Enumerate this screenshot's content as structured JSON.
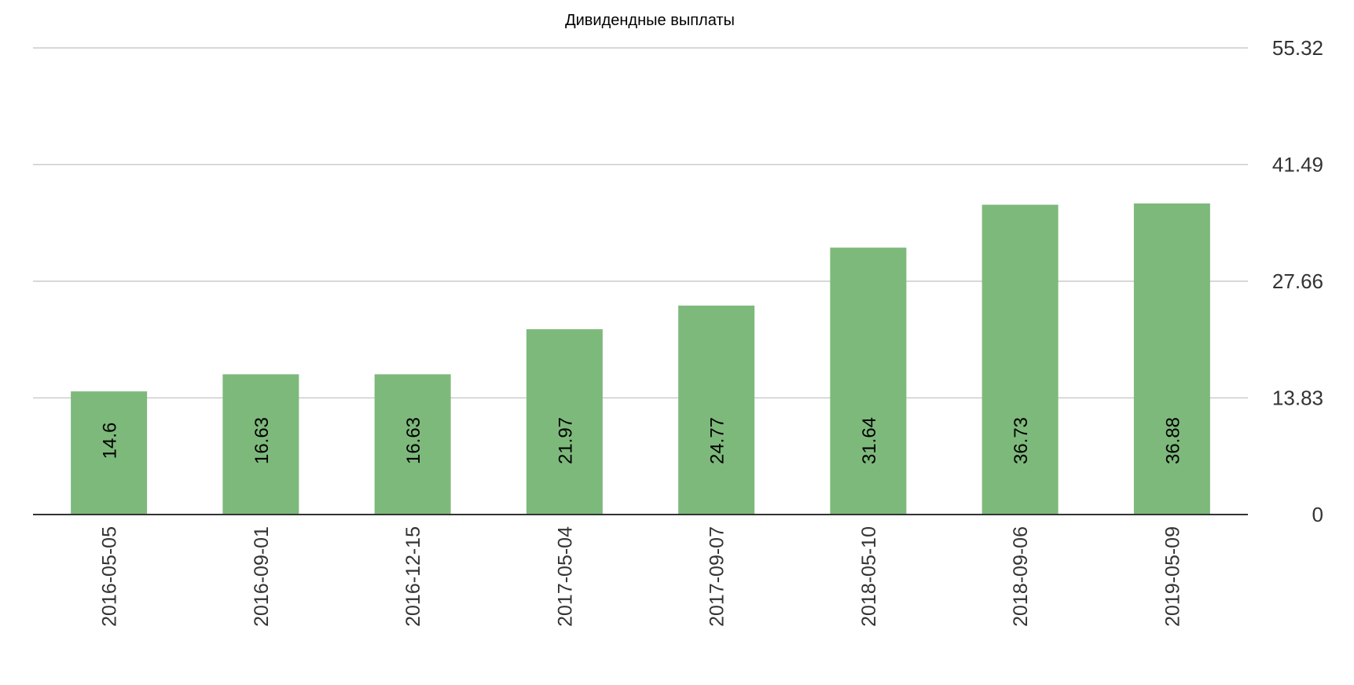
{
  "chart_data": {
    "type": "bar",
    "title": "Дивидендные выплаты",
    "categories": [
      "2016-05-05",
      "2016-09-01",
      "2016-12-15",
      "2017-05-04",
      "2017-09-07",
      "2018-05-10",
      "2018-09-06",
      "2019-05-09"
    ],
    "values": [
      14.6,
      16.63,
      16.63,
      21.97,
      24.77,
      31.64,
      36.73,
      36.88
    ],
    "data_labels": [
      "14.6",
      "16.63",
      "16.63",
      "21.97",
      "24.77",
      "31.64",
      "36.73",
      "36.88"
    ],
    "y_ticks": [
      0,
      13.83,
      27.66,
      41.49,
      55.32
    ],
    "y_tick_labels": [
      "0",
      "13.83",
      "27.66",
      "41.49",
      "55.32"
    ],
    "ylim": [
      0,
      55.32
    ],
    "y_axis_position": "right",
    "grid": true,
    "legend": "none",
    "colors": {
      "bar": "#7db97b",
      "grid": "#cccccc",
      "baseline": "#333333"
    }
  }
}
